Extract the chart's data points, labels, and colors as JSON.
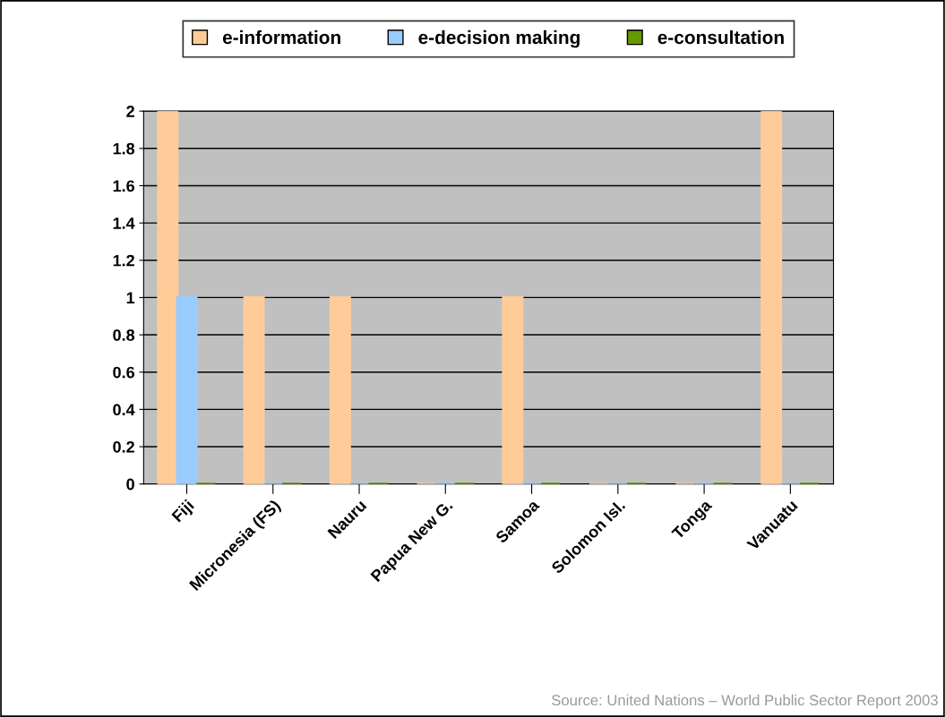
{
  "chart_data": {
    "type": "bar",
    "categories": [
      "Fiji",
      "Micronesia (FS)",
      "Nauru",
      "Papua New G.",
      "Samoa",
      "Solomon Isl.",
      "Tonga",
      "Vanuatu"
    ],
    "series": [
      {
        "name": "e-information",
        "color": "#ffcc99",
        "values": [
          2,
          1,
          1,
          0,
          1,
          0,
          0,
          2
        ]
      },
      {
        "name": "e-decision making",
        "color": "#99ccff",
        "values": [
          1,
          0,
          0,
          0,
          0,
          0,
          0,
          0
        ]
      },
      {
        "name": "e-consultation",
        "color": "#669900",
        "values": [
          0,
          0,
          0,
          0,
          0,
          0,
          0,
          0
        ]
      }
    ],
    "ylim": [
      0,
      2
    ],
    "yticks": [
      0,
      0.2,
      0.4,
      0.6,
      0.8,
      1,
      1.2,
      1.4,
      1.6,
      1.8,
      2
    ],
    "grid": "y",
    "legend": "top",
    "annotations": [
      "Source: United Nations – World Public Sector Report 2003"
    ]
  }
}
